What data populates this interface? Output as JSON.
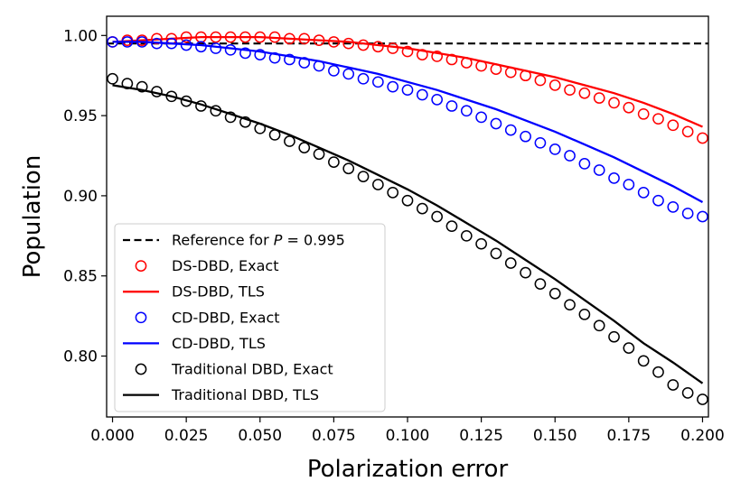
{
  "chart_data": {
    "type": "line",
    "title": "",
    "xlabel": "Polarization error",
    "ylabel": "Population",
    "xlim": [
      -0.002,
      0.202
    ],
    "ylim": [
      0.762,
      1.012
    ],
    "xticks": [
      0.0,
      0.025,
      0.05,
      0.075,
      0.1,
      0.125,
      0.15,
      0.175,
      0.2
    ],
    "xtick_labels": [
      "0.000",
      "0.025",
      "0.050",
      "0.075",
      "0.100",
      "0.125",
      "0.150",
      "0.175",
      "0.200"
    ],
    "yticks": [
      0.8,
      0.85,
      0.9,
      0.95,
      1.0
    ],
    "ytick_labels": [
      "0.80",
      "0.85",
      "0.90",
      "0.95",
      "1.00"
    ],
    "grid": false,
    "legend_position": "lower-left",
    "reference": {
      "name": "Reference for ",
      "name_var": "P",
      "name_suffix": " = 0.995",
      "value": 0.995,
      "color": "#000000",
      "style": "dashed"
    },
    "series": [
      {
        "name": "DS-DBD, Exact",
        "kind": "markers",
        "color": "#ff0000",
        "x": [
          0.0,
          0.005,
          0.01,
          0.015,
          0.02,
          0.025,
          0.03,
          0.035,
          0.04,
          0.045,
          0.05,
          0.055,
          0.06,
          0.065,
          0.07,
          0.075,
          0.08,
          0.085,
          0.09,
          0.095,
          0.1,
          0.105,
          0.11,
          0.115,
          0.12,
          0.125,
          0.13,
          0.135,
          0.14,
          0.145,
          0.15,
          0.155,
          0.16,
          0.165,
          0.17,
          0.175,
          0.18,
          0.185,
          0.19,
          0.195,
          0.2
        ],
        "y": [
          0.996,
          0.997,
          0.997,
          0.998,
          0.998,
          0.999,
          0.999,
          0.999,
          0.999,
          0.999,
          0.999,
          0.999,
          0.998,
          0.998,
          0.997,
          0.996,
          0.995,
          0.994,
          0.993,
          0.992,
          0.99,
          0.988,
          0.987,
          0.985,
          0.983,
          0.981,
          0.979,
          0.977,
          0.975,
          0.972,
          0.969,
          0.966,
          0.964,
          0.961,
          0.958,
          0.955,
          0.951,
          0.948,
          0.944,
          0.94,
          0.936
        ]
      },
      {
        "name": "DS-DBD, TLS",
        "kind": "line",
        "color": "#ff0000",
        "x": [
          0.0,
          0.01,
          0.02,
          0.03,
          0.04,
          0.05,
          0.06,
          0.07,
          0.08,
          0.09,
          0.1,
          0.11,
          0.12,
          0.13,
          0.14,
          0.15,
          0.16,
          0.17,
          0.18,
          0.19,
          0.2
        ],
        "y": [
          0.996,
          0.997,
          0.998,
          0.999,
          0.999,
          0.999,
          0.998,
          0.997,
          0.996,
          0.994,
          0.992,
          0.989,
          0.986,
          0.982,
          0.978,
          0.974,
          0.969,
          0.964,
          0.958,
          0.951,
          0.943
        ]
      },
      {
        "name": "CD-DBD, Exact",
        "kind": "markers",
        "color": "#0000ff",
        "x": [
          0.0,
          0.005,
          0.01,
          0.015,
          0.02,
          0.025,
          0.03,
          0.035,
          0.04,
          0.045,
          0.05,
          0.055,
          0.06,
          0.065,
          0.07,
          0.075,
          0.08,
          0.085,
          0.09,
          0.095,
          0.1,
          0.105,
          0.11,
          0.115,
          0.12,
          0.125,
          0.13,
          0.135,
          0.14,
          0.145,
          0.15,
          0.155,
          0.16,
          0.165,
          0.17,
          0.175,
          0.18,
          0.185,
          0.19,
          0.195,
          0.2
        ],
        "y": [
          0.996,
          0.996,
          0.996,
          0.995,
          0.995,
          0.994,
          0.993,
          0.992,
          0.991,
          0.989,
          0.988,
          0.986,
          0.985,
          0.983,
          0.981,
          0.978,
          0.976,
          0.973,
          0.971,
          0.968,
          0.966,
          0.963,
          0.96,
          0.956,
          0.953,
          0.949,
          0.945,
          0.941,
          0.937,
          0.933,
          0.929,
          0.925,
          0.92,
          0.916,
          0.911,
          0.907,
          0.902,
          0.897,
          0.893,
          0.889,
          0.887
        ]
      },
      {
        "name": "CD-DBD, TLS",
        "kind": "line",
        "color": "#0000ff",
        "x": [
          0.0,
          0.01,
          0.02,
          0.03,
          0.04,
          0.05,
          0.06,
          0.07,
          0.08,
          0.09,
          0.1,
          0.11,
          0.12,
          0.13,
          0.14,
          0.15,
          0.16,
          0.17,
          0.18,
          0.19,
          0.2
        ],
        "y": [
          0.996,
          0.996,
          0.995,
          0.994,
          0.992,
          0.99,
          0.987,
          0.984,
          0.98,
          0.976,
          0.971,
          0.966,
          0.96,
          0.954,
          0.947,
          0.94,
          0.932,
          0.924,
          0.915,
          0.906,
          0.896
        ]
      },
      {
        "name": "Traditional DBD, Exact",
        "kind": "markers",
        "color": "#000000",
        "x": [
          0.0,
          0.005,
          0.01,
          0.015,
          0.02,
          0.025,
          0.03,
          0.035,
          0.04,
          0.045,
          0.05,
          0.055,
          0.06,
          0.065,
          0.07,
          0.075,
          0.08,
          0.085,
          0.09,
          0.095,
          0.1,
          0.105,
          0.11,
          0.115,
          0.12,
          0.125,
          0.13,
          0.135,
          0.14,
          0.145,
          0.15,
          0.155,
          0.16,
          0.165,
          0.17,
          0.175,
          0.18,
          0.185,
          0.19,
          0.195,
          0.2
        ],
        "y": [
          0.973,
          0.97,
          0.968,
          0.965,
          0.962,
          0.959,
          0.956,
          0.953,
          0.949,
          0.946,
          0.942,
          0.938,
          0.934,
          0.93,
          0.926,
          0.921,
          0.917,
          0.912,
          0.907,
          0.902,
          0.897,
          0.892,
          0.887,
          0.881,
          0.875,
          0.87,
          0.864,
          0.858,
          0.852,
          0.845,
          0.839,
          0.832,
          0.826,
          0.819,
          0.812,
          0.805,
          0.797,
          0.79,
          0.782,
          0.777,
          0.773
        ]
      },
      {
        "name": "Traditional DBD, TLS",
        "kind": "line",
        "color": "#000000",
        "x": [
          0.0,
          0.01,
          0.02,
          0.03,
          0.04,
          0.05,
          0.06,
          0.07,
          0.08,
          0.09,
          0.1,
          0.11,
          0.12,
          0.13,
          0.14,
          0.15,
          0.16,
          0.17,
          0.18,
          0.19,
          0.2
        ],
        "y": [
          0.969,
          0.966,
          0.962,
          0.957,
          0.951,
          0.945,
          0.938,
          0.93,
          0.922,
          0.913,
          0.904,
          0.894,
          0.883,
          0.872,
          0.86,
          0.848,
          0.835,
          0.822,
          0.808,
          0.796,
          0.783
        ]
      }
    ]
  }
}
